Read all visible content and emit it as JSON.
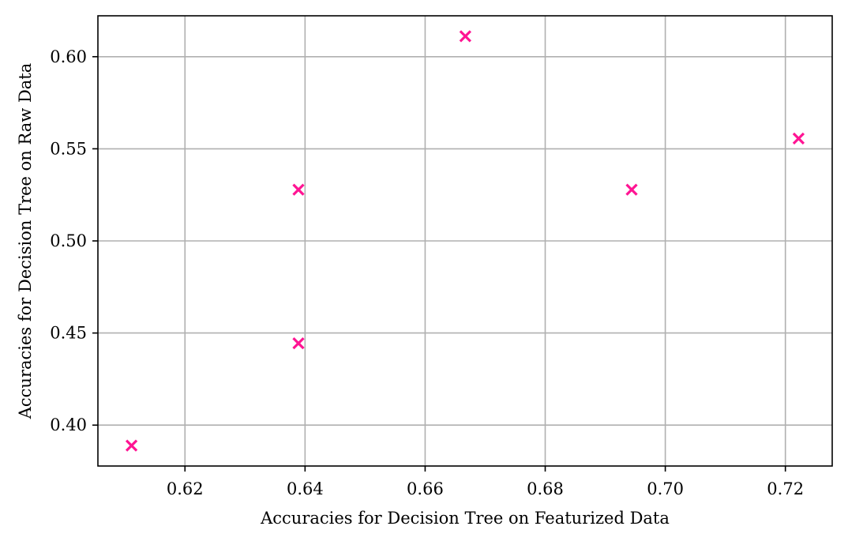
{
  "chart_data": {
    "type": "scatter",
    "title": "",
    "xlabel": "Accuracies for Decision Tree on Featurized Data",
    "ylabel": "Accuracies for Decision Tree on Raw Data",
    "xlim": [
      0.6055,
      0.7278
    ],
    "ylim": [
      0.3778,
      0.6222
    ],
    "xticks": [
      0.62,
      0.64,
      0.66,
      0.68,
      0.7,
      0.72
    ],
    "xtick_labels": [
      "0.62",
      "0.64",
      "0.66",
      "0.68",
      "0.70",
      "0.72"
    ],
    "yticks": [
      0.4,
      0.45,
      0.5,
      0.55,
      0.6
    ],
    "ytick_labels": [
      "0.40",
      "0.45",
      "0.50",
      "0.55",
      "0.60"
    ],
    "grid": true,
    "marker": "x",
    "color": "#ff1493",
    "series": [
      {
        "points": [
          {
            "x": 0.6111,
            "y": 0.3889
          },
          {
            "x": 0.6389,
            "y": 0.4444
          },
          {
            "x": 0.6389,
            "y": 0.5278
          },
          {
            "x": 0.6667,
            "y": 0.6111
          },
          {
            "x": 0.6944,
            "y": 0.5278
          },
          {
            "x": 0.7222,
            "y": 0.5556
          }
        ]
      }
    ]
  }
}
